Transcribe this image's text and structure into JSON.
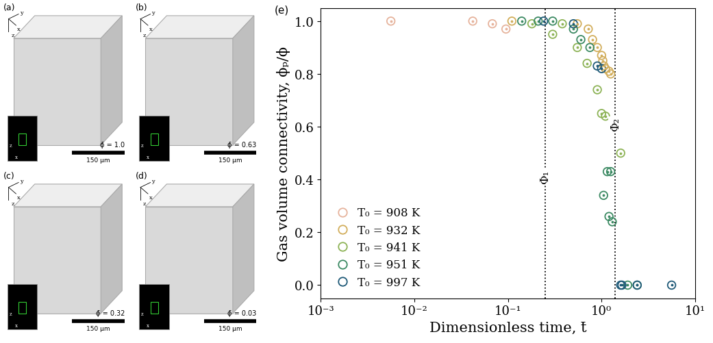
{
  "image_panels": {
    "triad": [
      "x",
      "y",
      "z"
    ],
    "inset_triad": [
      "z",
      "x"
    ],
    "panels": [
      {
        "label": "(a)",
        "phi_text": "ϕ̄ = 1.0",
        "scale_text": "150 μm"
      },
      {
        "label": "(b)",
        "phi_text": "ϕ̄ = 0.63",
        "scale_text": "150 μm"
      },
      {
        "label": "(c)",
        "phi_text": "ϕ̄ = 0.32",
        "scale_text": "150 μm"
      },
      {
        "label": "(d)",
        "phi_text": "ϕ̄ = 0.03",
        "scale_text": "150 μm"
      }
    ]
  },
  "chart_data": {
    "type": "scatter",
    "panel_label": "(e)",
    "xlabel": "Dimensionless time, t̄",
    "ylabel": "Gas volume connectivity, ϕₚ/ϕ",
    "log": "x",
    "marker": "circle",
    "legend": "lower left",
    "xlim": [
      0.001,
      10
    ],
    "xticks": [
      {
        "value": 0.001,
        "label": "10⁻³"
      },
      {
        "value": 0.01,
        "label": "10⁻²"
      },
      {
        "value": 0.1,
        "label": "10⁻¹"
      },
      {
        "value": 1,
        "label": "10⁰"
      },
      {
        "value": 10,
        "label": "10¹"
      }
    ],
    "ylim": [
      -0.05,
      1.05
    ],
    "yticks": [
      {
        "value": 0,
        "label": "0.0"
      },
      {
        "value": 0.2,
        "label": "0.2"
      },
      {
        "value": 0.4,
        "label": "0.4"
      },
      {
        "value": 0.6,
        "label": "0.6"
      },
      {
        "value": 0.8,
        "label": "0.8"
      },
      {
        "value": 1,
        "label": "1.0"
      }
    ],
    "vlines": [
      {
        "x": 0.25,
        "label": "Φ₁"
      },
      {
        "x": 1.4,
        "label": "Φ₂"
      }
    ],
    "series": [
      {
        "name": "T₀ = 908 K",
        "color": "#e6b39c",
        "x": [
          0.0056,
          0.042,
          0.068,
          0.095
        ],
        "values": [
          1.0,
          1.0,
          0.99,
          0.97
        ]
      },
      {
        "name": "T₀ = 932 K",
        "color": "#d2ae5c",
        "x": [
          0.11,
          0.55,
          0.72,
          0.8,
          0.9,
          1.0,
          1.03,
          1.06,
          1.1,
          1.2,
          1.25
        ],
        "values": [
          1.0,
          0.99,
          0.97,
          0.93,
          0.9,
          0.87,
          0.85,
          0.83,
          0.82,
          0.81,
          0.8
        ]
      },
      {
        "name": "T₀ = 941 K",
        "color": "#8db356",
        "x": [
          0.18,
          0.3,
          0.38,
          0.55,
          0.7,
          0.9,
          1.0,
          1.1,
          1.6
        ],
        "values": [
          0.99,
          0.95,
          0.99,
          0.9,
          0.84,
          0.74,
          0.65,
          0.64,
          0.5
        ]
      },
      {
        "name": "T₀ = 951 K",
        "color": "#3c8a63",
        "x": [
          0.14,
          0.21,
          0.3,
          0.5,
          0.6,
          0.75,
          1.05,
          1.15,
          1.2,
          1.25,
          1.3,
          1.9,
          2.4
        ],
        "values": [
          1.0,
          1.0,
          1.0,
          0.97,
          0.93,
          0.9,
          0.34,
          0.43,
          0.26,
          0.43,
          0.24,
          0.0,
          0.0
        ]
      },
      {
        "name": "T₀ = 997 K",
        "color": "#1f5a78",
        "x": [
          0.24,
          0.5,
          0.9,
          1.0,
          1.6,
          1.65,
          2.4,
          5.6
        ],
        "values": [
          1.0,
          0.99,
          0.83,
          0.82,
          0.0,
          0.0,
          0.0,
          0.0
        ]
      }
    ]
  }
}
